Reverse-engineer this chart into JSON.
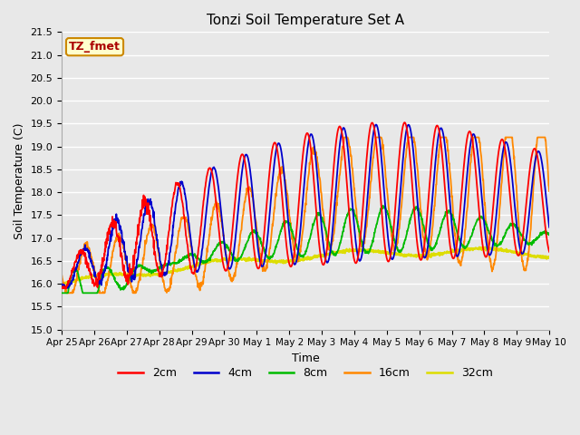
{
  "title": "Tonzi Soil Temperature Set A",
  "xlabel": "Time",
  "ylabel": "Soil Temperature (C)",
  "ylim": [
    15.0,
    21.5
  ],
  "yticks": [
    15.0,
    15.5,
    16.0,
    16.5,
    17.0,
    17.5,
    18.0,
    18.5,
    19.0,
    19.5,
    20.0,
    20.5,
    21.0,
    21.5
  ],
  "xtick_labels": [
    "Apr 25",
    "Apr 26",
    "Apr 27",
    "Apr 28",
    "Apr 29",
    "Apr 30",
    "May 1",
    "May 2",
    "May 3",
    "May 4",
    "May 5",
    "May 6",
    "May 7",
    "May 8",
    "May 9",
    "May 10"
  ],
  "colors": {
    "2cm": "#ff0000",
    "4cm": "#0000cc",
    "8cm": "#00bb00",
    "16cm": "#ff8800",
    "32cm": "#dddd00"
  },
  "label_box_text": "TZ_fmet",
  "label_box_facecolor": "#ffffcc",
  "label_box_edgecolor": "#cc8800",
  "plot_bg_color": "#e8e8e8",
  "grid_color": "#ffffff"
}
